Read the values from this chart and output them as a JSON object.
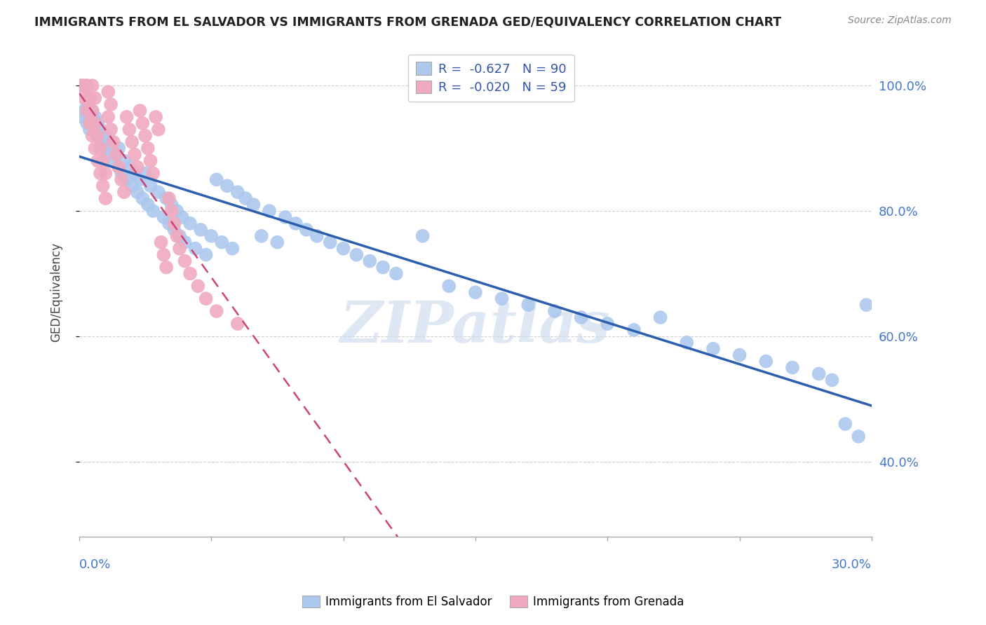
{
  "title": "IMMIGRANTS FROM EL SALVADOR VS IMMIGRANTS FROM GRENADA GED/EQUIVALENCY CORRELATION CHART",
  "source": "Source: ZipAtlas.com",
  "ylabel": "GED/Equivalency",
  "series1_name": "Immigrants from El Salvador",
  "series1_color": "#adc8ed",
  "series1_line_color": "#2b5fad",
  "series1_R": -0.627,
  "series1_N": 90,
  "series2_name": "Immigrants from Grenada",
  "series2_color": "#f0aabf",
  "series2_line_color": "#cc4477",
  "series2_R": -0.02,
  "series2_N": 59,
  "xlim": [
    0.0,
    0.3
  ],
  "ylim": [
    0.28,
    1.06
  ],
  "watermark": "ZIPatlas",
  "background_color": "#ffffff",
  "grid_color": "#d0d0d0",
  "title_color": "#222222",
  "axis_label_color": "#4477cc",
  "legend_text_color": "#3355aa",
  "blue_scatter_x": [
    0.001,
    0.002,
    0.003,
    0.003,
    0.004,
    0.005,
    0.005,
    0.006,
    0.006,
    0.007,
    0.007,
    0.008,
    0.008,
    0.009,
    0.01,
    0.01,
    0.011,
    0.012,
    0.013,
    0.014,
    0.015,
    0.015,
    0.016,
    0.017,
    0.018,
    0.019,
    0.02,
    0.021,
    0.022,
    0.023,
    0.024,
    0.025,
    0.026,
    0.027,
    0.028,
    0.03,
    0.032,
    0.033,
    0.034,
    0.035,
    0.036,
    0.037,
    0.038,
    0.039,
    0.04,
    0.042,
    0.044,
    0.046,
    0.048,
    0.05,
    0.052,
    0.054,
    0.056,
    0.058,
    0.06,
    0.063,
    0.066,
    0.069,
    0.072,
    0.075,
    0.078,
    0.082,
    0.086,
    0.09,
    0.095,
    0.1,
    0.105,
    0.11,
    0.115,
    0.12,
    0.13,
    0.14,
    0.15,
    0.16,
    0.17,
    0.18,
    0.19,
    0.2,
    0.21,
    0.22,
    0.23,
    0.24,
    0.25,
    0.26,
    0.27,
    0.28,
    0.285,
    0.29,
    0.295,
    0.298
  ],
  "blue_scatter_y": [
    0.95,
    0.96,
    0.94,
    0.97,
    0.93,
    0.95,
    0.96,
    0.94,
    0.95,
    0.93,
    0.94,
    0.92,
    0.93,
    0.91,
    0.9,
    0.92,
    0.89,
    0.91,
    0.88,
    0.89,
    0.87,
    0.9,
    0.86,
    0.88,
    0.85,
    0.87,
    0.84,
    0.86,
    0.83,
    0.85,
    0.82,
    0.86,
    0.81,
    0.84,
    0.8,
    0.83,
    0.79,
    0.82,
    0.78,
    0.81,
    0.77,
    0.8,
    0.76,
    0.79,
    0.75,
    0.78,
    0.74,
    0.77,
    0.73,
    0.76,
    0.85,
    0.75,
    0.84,
    0.74,
    0.83,
    0.82,
    0.81,
    0.76,
    0.8,
    0.75,
    0.79,
    0.78,
    0.77,
    0.76,
    0.75,
    0.74,
    0.73,
    0.72,
    0.71,
    0.7,
    0.76,
    0.68,
    0.67,
    0.66,
    0.65,
    0.64,
    0.63,
    0.62,
    0.61,
    0.63,
    0.59,
    0.58,
    0.57,
    0.56,
    0.55,
    0.54,
    0.53,
    0.46,
    0.44,
    0.65
  ],
  "pink_scatter_x": [
    0.001,
    0.001,
    0.002,
    0.002,
    0.003,
    0.003,
    0.003,
    0.004,
    0.004,
    0.005,
    0.005,
    0.005,
    0.006,
    0.006,
    0.006,
    0.007,
    0.007,
    0.008,
    0.008,
    0.009,
    0.009,
    0.01,
    0.01,
    0.011,
    0.011,
    0.012,
    0.012,
    0.013,
    0.014,
    0.015,
    0.016,
    0.017,
    0.018,
    0.019,
    0.02,
    0.021,
    0.022,
    0.023,
    0.024,
    0.025,
    0.026,
    0.027,
    0.028,
    0.029,
    0.03,
    0.031,
    0.032,
    0.033,
    0.034,
    0.035,
    0.036,
    0.037,
    0.038,
    0.04,
    0.042,
    0.045,
    0.048,
    0.052,
    0.06
  ],
  "pink_scatter_y": [
    1.0,
    1.0,
    0.98,
    1.0,
    0.96,
    1.0,
    1.0,
    0.94,
    0.98,
    0.92,
    0.96,
    1.0,
    0.9,
    0.94,
    0.98,
    0.88,
    0.92,
    0.86,
    0.9,
    0.84,
    0.88,
    0.82,
    0.86,
    0.95,
    0.99,
    0.93,
    0.97,
    0.91,
    0.89,
    0.87,
    0.85,
    0.83,
    0.95,
    0.93,
    0.91,
    0.89,
    0.87,
    0.96,
    0.94,
    0.92,
    0.9,
    0.88,
    0.86,
    0.95,
    0.93,
    0.75,
    0.73,
    0.71,
    0.82,
    0.8,
    0.78,
    0.76,
    0.74,
    0.72,
    0.7,
    0.68,
    0.66,
    0.64,
    0.62
  ]
}
